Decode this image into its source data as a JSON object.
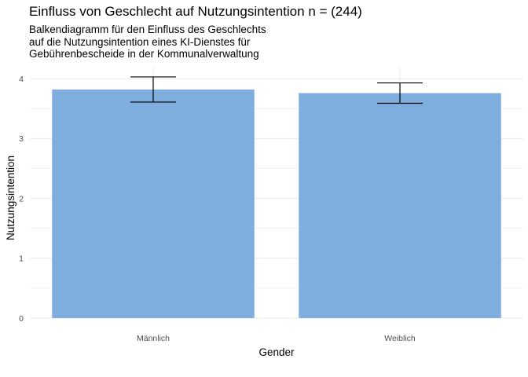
{
  "chart_data": {
    "type": "bar",
    "title": "Einfluss von Geschlecht auf Nutzungsintention n = (244)",
    "subtitle_lines": [
      "Balkendiagramm für den Einfluss des Geschlechts",
      "    auf die Nutzungsintention eines KI-Dienstes für",
      "    Gebührenbescheide in der Kommunalverwaltung"
    ],
    "xlabel": "Gender",
    "ylabel": "Nutzungsintention",
    "categories": [
      "Männlich",
      "Weiblich"
    ],
    "values": [
      3.82,
      3.76
    ],
    "error_lower": [
      3.61,
      3.59
    ],
    "error_upper": [
      4.03,
      3.93
    ],
    "ylim": [
      0,
      4.2
    ],
    "y_ticks": [
      0,
      1,
      2,
      3,
      4
    ],
    "grid": true,
    "bar_color": "#7eadde",
    "gridline_color": "#ebebeb",
    "errorbar_color": "#000000"
  }
}
